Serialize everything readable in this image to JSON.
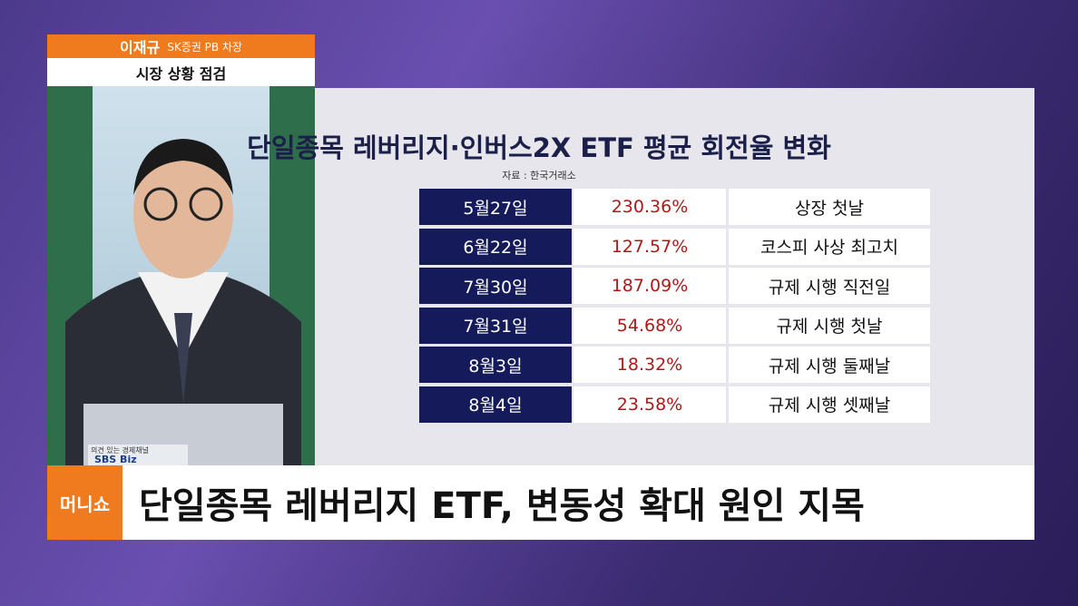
{
  "nameplate": {
    "name": "이재규",
    "role": "SK증권 PB 차장",
    "segment": "시장 상황 점검"
  },
  "panel": {
    "title": "단일종목 레버리지·인버스2X ETF 평균 회전율 변화",
    "source": "자료 : 한국거래소",
    "table": {
      "rows": [
        [
          "5월27일",
          "230.36%",
          "상장 첫날"
        ],
        [
          "6월22일",
          "127.57%",
          "코스피 사상 최고치"
        ],
        [
          "7월30일",
          "187.09%",
          "규제 시행 직전일"
        ],
        [
          "7월31일",
          "54.68%",
          "규제 시행 첫날"
        ],
        [
          "8월3일",
          "18.32%",
          "규제 시행 둘째날"
        ],
        [
          "8월4일",
          "23.58%",
          "규제 시행 셋째날"
        ]
      ]
    }
  },
  "desk": {
    "slogan": "의견 있는 경제채널",
    "logo": "SBS Biz"
  },
  "ticker": {
    "logo": "머니쇼",
    "headline": "단일종목 레버리지 ETF, 변동성 확대 원인 지목"
  }
}
